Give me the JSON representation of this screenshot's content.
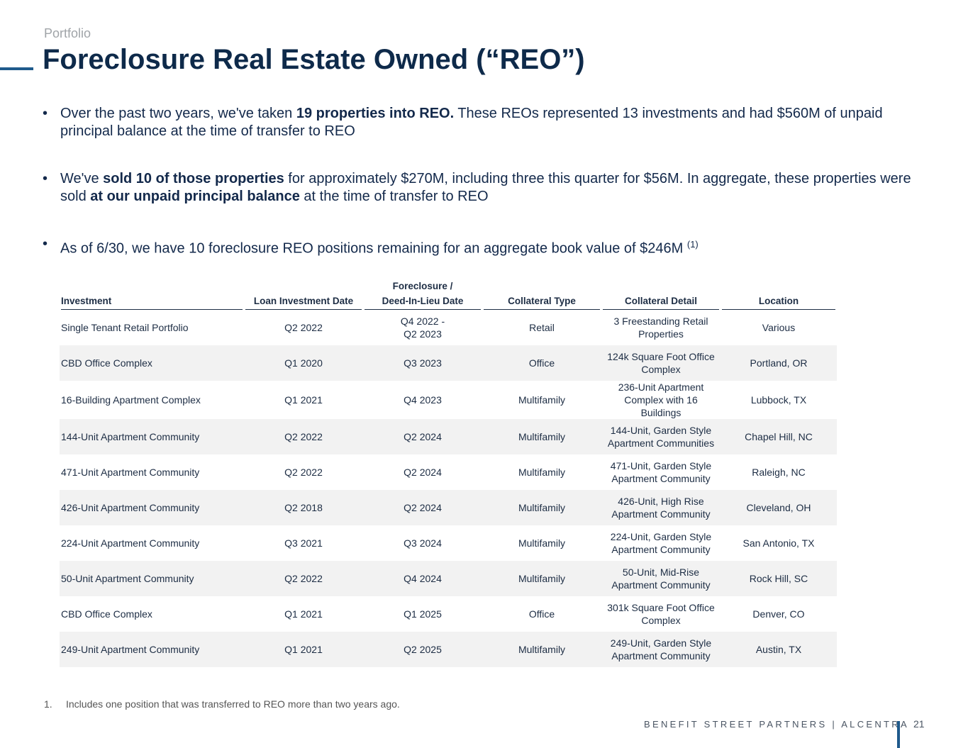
{
  "header": {
    "section": "Portfolio",
    "title": "Foreclosure Real Estate Owned (“REO”)"
  },
  "bullets": [
    [
      {
        "text": "Over the past two years, we've taken "
      },
      {
        "text": "19 properties into REO.",
        "bold": true
      },
      {
        "text": " These REOs represented 13 investments and had $560M of unpaid principal balance at the time of transfer to REO"
      }
    ],
    [
      {
        "text": "We've "
      },
      {
        "text": "sold 10 of those properties",
        "bold": true
      },
      {
        "text": " for approximately $270M, including three this quarter for $56M. In aggregate, these properties were sold "
      },
      {
        "text": "at our unpaid principal balance",
        "bold": true
      },
      {
        "text": " at the time of transfer to REO"
      }
    ],
    [
      {
        "text": "As of 6/30, we have 10 foreclosure REO positions remaining for an aggregate book value of $246M "
      },
      {
        "text": "(1)",
        "sup": true
      }
    ]
  ],
  "table": {
    "headers": [
      "Investment",
      "Loan Investment Date",
      "Foreclosure /\nDeed-In-Lieu Date",
      "Collateral Type",
      "Collateral Detail",
      "Location"
    ],
    "rows": [
      [
        "Single Tenant Retail Portfolio",
        "Q2 2022",
        "Q4 2022 -\nQ2 2023",
        "Retail",
        "3 Freestanding Retail\nProperties",
        "Various"
      ],
      [
        "CBD Office Complex",
        "Q1 2020",
        "Q3 2023",
        "Office",
        "124k Square Foot Office\nComplex",
        "Portland, OR"
      ],
      [
        "16-Building Apartment Complex",
        "Q1 2021",
        "Q4 2023",
        "Multifamily",
        "236-Unit Apartment\nComplex with 16 Buildings",
        "Lubbock, TX"
      ],
      [
        "144-Unit Apartment Community",
        "Q2 2022",
        "Q2 2024",
        "Multifamily",
        "144-Unit, Garden Style\nApartment Communities",
        "Chapel Hill, NC"
      ],
      [
        "471-Unit Apartment Community",
        "Q2 2022",
        "Q2 2024",
        "Multifamily",
        "471-Unit, Garden Style\nApartment Community",
        "Raleigh, NC"
      ],
      [
        "426-Unit Apartment Community",
        "Q2 2018",
        "Q2 2024",
        "Multifamily",
        "426-Unit, High Rise\nApartment Community",
        "Cleveland, OH"
      ],
      [
        "224-Unit Apartment Community",
        "Q3 2021",
        "Q3 2024",
        "Multifamily",
        "224-Unit, Garden Style\nApartment Community",
        "San Antonio, TX"
      ],
      [
        "50-Unit Apartment Community",
        "Q2 2022",
        "Q4 2024",
        "Multifamily",
        "50-Unit, Mid-Rise\nApartment Community",
        "Rock Hill, SC"
      ],
      [
        "CBD Office Complex",
        "Q1 2021",
        "Q1 2025",
        "Office",
        "301k Square Foot Office\nComplex",
        "Denver, CO"
      ],
      [
        "249-Unit Apartment Community",
        "Q1 2021",
        "Q2 2025",
        "Multifamily",
        "249-Unit, Garden Style\nApartment Community",
        "Austin, TX"
      ]
    ]
  },
  "footnote": {
    "number": "1.",
    "text": "Includes one position that was transferred to REO more than two years ago."
  },
  "footer": {
    "brand": "BENEFIT STREET PARTNERS | ALCENTRA",
    "page": "21"
  }
}
